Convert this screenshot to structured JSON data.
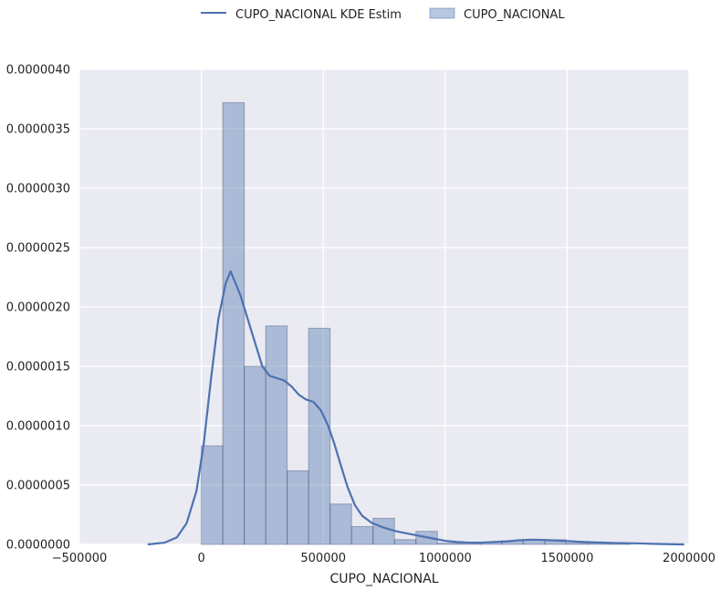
{
  "chart_data": {
    "type": "bar",
    "xlabel": "CUPO_NACIONAL",
    "ylabel": "",
    "xlim": [
      -500000,
      2000000
    ],
    "ylim": [
      0,
      4e-06
    ],
    "x_ticks": [
      {
        "value": -500000,
        "label": "−500000"
      },
      {
        "value": 0,
        "label": "0"
      },
      {
        "value": 500000,
        "label": "500000"
      },
      {
        "value": 1000000,
        "label": "1000000"
      },
      {
        "value": 1500000,
        "label": "1500000"
      },
      {
        "value": 2000000,
        "label": "2000000"
      }
    ],
    "y_ticks": [
      {
        "value": 0,
        "label": "0.0000000"
      },
      {
        "value": 5e-07,
        "label": "0.0000005"
      },
      {
        "value": 1e-06,
        "label": "0.0000010"
      },
      {
        "value": 1.5e-06,
        "label": "0.0000015"
      },
      {
        "value": 2e-06,
        "label": "0.0000020"
      },
      {
        "value": 2.5e-06,
        "label": "0.0000025"
      },
      {
        "value": 3e-06,
        "label": "0.0000030"
      },
      {
        "value": 3.5e-06,
        "label": "0.0000035"
      },
      {
        "value": 4e-06,
        "label": "0.0000040"
      }
    ],
    "grid": true,
    "legend_position": "top-center",
    "series": [
      {
        "name": "CUPO_NACIONAL KDE Estim",
        "type": "line",
        "color": "#4c72b0",
        "x": [
          -220000,
          -150000,
          -100000,
          -60000,
          -20000,
          10000,
          40000,
          70000,
          100000,
          120000,
          140000,
          160000,
          190000,
          220000,
          250000,
          280000,
          310000,
          340000,
          370000,
          400000,
          430000,
          460000,
          490000,
          520000,
          545000,
          570000,
          600000,
          630000,
          660000,
          700000,
          750000,
          800000,
          850000,
          900000,
          950000,
          1000000,
          1050000,
          1100000,
          1150000,
          1200000,
          1250000,
          1300000,
          1350000,
          1400000,
          1450000,
          1500000,
          1550000,
          1600000,
          1650000,
          1700000,
          1750000,
          1800000,
          1850000,
          1900000,
          1950000,
          1980000
        ],
        "y": [
          0.0,
          1.5e-08,
          6e-08,
          1.8e-07,
          4.5e-07,
          8.5e-07,
          1.4e-06,
          1.9e-06,
          2.2e-06,
          2.3e-06,
          2.2e-06,
          2.1e-06,
          1.9e-06,
          1.7e-06,
          1.5e-06,
          1.42e-06,
          1.4e-06,
          1.38e-06,
          1.33e-06,
          1.26e-06,
          1.22e-06,
          1.2e-06,
          1.13e-06,
          1e-06,
          8.5e-07,
          6.8e-07,
          4.8e-07,
          3.3e-07,
          2.4e-07,
          1.8e-07,
          1.4e-07,
          1.1e-07,
          9e-08,
          7e-08,
          5e-08,
          3e-08,
          2e-08,
          1.5e-08,
          1.5e-08,
          2e-08,
          2.5e-08,
          3.5e-08,
          4e-08,
          3.8e-08,
          3.3e-08,
          2.8e-08,
          2.2e-08,
          1.8e-08,
          1.5e-08,
          1.2e-08,
          1e-08,
          8e-09,
          5e-09,
          3e-09,
          1e-09,
          0.0
        ]
      },
      {
        "name": "CUPO_NACIONAL",
        "type": "histogram",
        "color": "#4c72b0",
        "bin_edges": [
          0,
          88000,
          176000,
          264000,
          352000,
          440000,
          528000,
          616000,
          704000,
          792000,
          880000,
          968000,
          1056000,
          1144000,
          1232000,
          1320000,
          1408000,
          1496000,
          1584000,
          1672000,
          1760000
        ],
        "values": [
          8.3e-07,
          3.72e-06,
          1.5e-06,
          1.84e-06,
          6.2e-07,
          1.82e-06,
          3.4e-07,
          1.5e-07,
          2.2e-07,
          4e-08,
          1.1e-07,
          1e-08,
          1e-08,
          2e-08,
          3e-08,
          4e-08,
          4e-08,
          1e-08,
          1e-08,
          1e-08
        ]
      }
    ]
  },
  "colors": {
    "background": "#eaeaf2",
    "grid": "#ffffff",
    "kde": "#4c72b0",
    "hist_fill": "#4c72b0"
  }
}
